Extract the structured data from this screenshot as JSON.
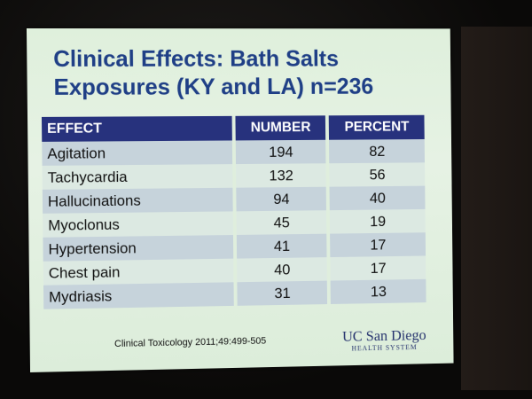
{
  "slide": {
    "title_line1": "Clinical Effects: Bath Salts",
    "title_line2": "Exposures (KY and LA) n=236",
    "table": {
      "columns": [
        "EFFECT",
        "NUMBER",
        "PERCENT"
      ],
      "rows": [
        [
          "Agitation",
          "194",
          "82"
        ],
        [
          "Tachycardia",
          "132",
          "56"
        ],
        [
          "Hallucinations",
          "94",
          "40"
        ],
        [
          "Myoclonus",
          "45",
          "19"
        ],
        [
          "Hypertension",
          "41",
          "17"
        ],
        [
          "Chest pain",
          "40",
          "17"
        ],
        [
          "Mydriasis",
          "31",
          "13"
        ]
      ]
    },
    "citation": "Clinical Toxicology 2011;49:499-505",
    "logo": {
      "main": "UC San Diego",
      "sub": "HEALTH SYSTEM"
    }
  },
  "colors": {
    "title": "#1f3f86",
    "header_bg": "#27327d",
    "row_shade": "#c6d3db",
    "slide_bg": "#dff0dc"
  }
}
